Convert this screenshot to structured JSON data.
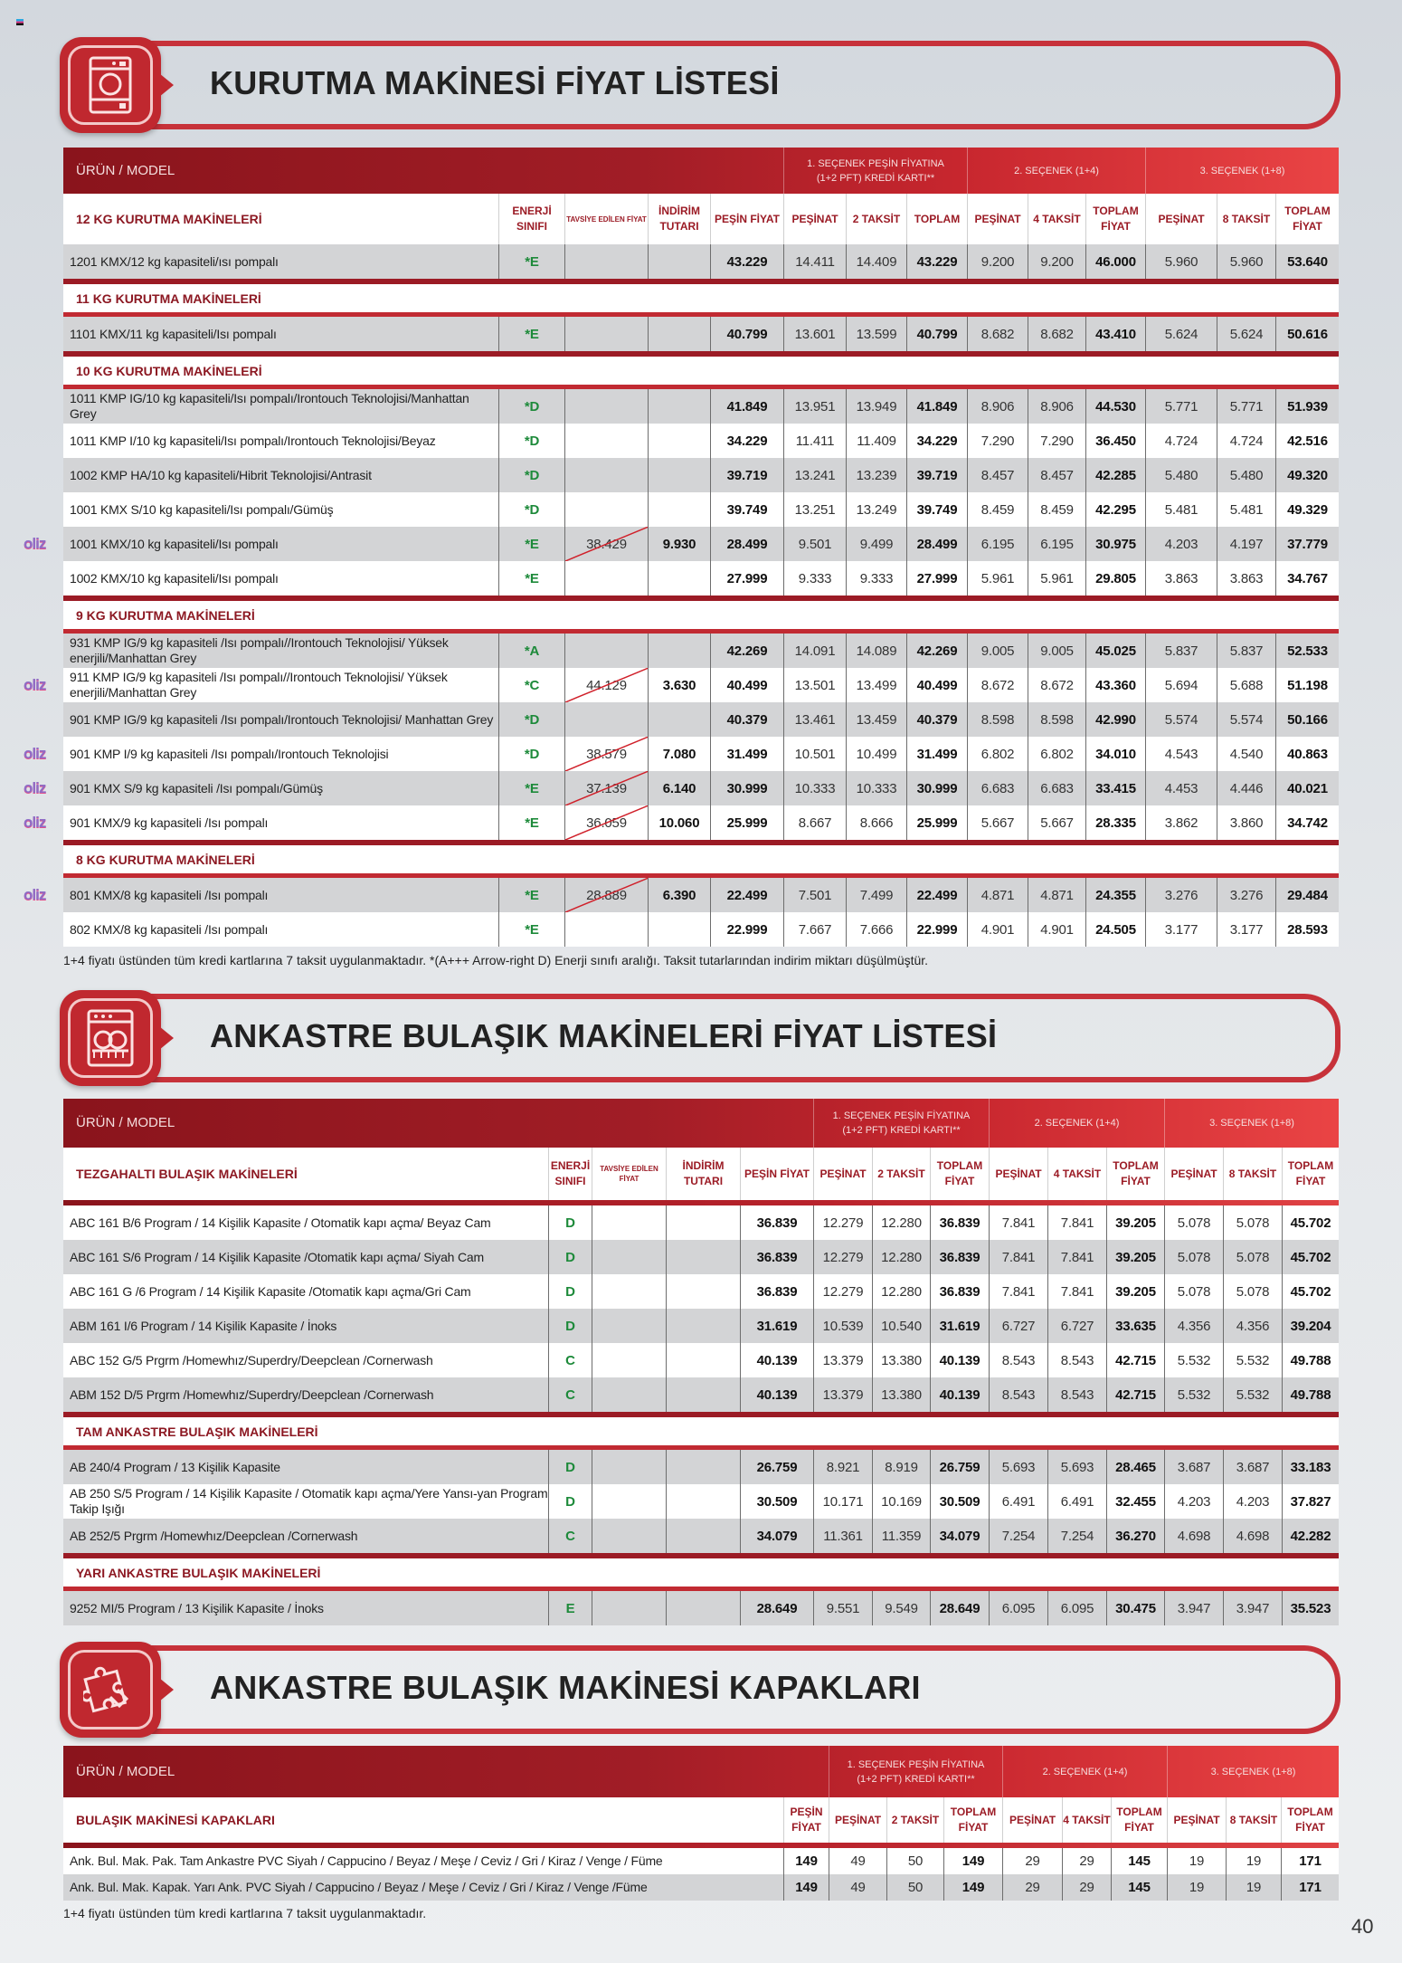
{
  "page_number": "40",
  "logo_text": "oliz",
  "header_groups": {
    "product_label": "ÜRÜN / MODEL",
    "g1_line1": "1. SEÇENEK PEŞİN FİYATINA",
    "g1_line2": "(1+2 PFT) KREDİ KARTI**",
    "g2": "2. SEÇENEK (1+4)",
    "g3": "3. SEÇENEK (1+8)"
  },
  "tables": [
    {
      "banner_title": "KURUTMA MAKİNESİ FİYAT LİSTESİ",
      "icon": "dryer-icon",
      "columns": [
        "ENERJİ SINIFI",
        "TAVSİYE EDİLEN FİYAT",
        "İNDİRİM TUTARI",
        "PEŞİN FİYAT",
        "PEŞİNAT",
        "2 TAKSİT",
        "TOPLAM",
        "PEŞİNAT",
        "4 TAKSİT",
        "TOPLAM FİYAT",
        "PEŞİNAT",
        "8 TAKSİT",
        "TOPLAM FİYAT"
      ],
      "footnote": "1+4 fiyatı üstünden tüm kredi kartlarına 7 taksit uygulanmaktadır. *(A+++ Arrow-right D) Enerji sınıfı aralığı. Taksit tutarlarından indirim miktarı düşülmüştür.",
      "sections": [
        {
          "title": "12 KG KURUTMA MAKİNELERİ",
          "rows": [
            {
              "name": "1201 KMX/12 kg kapasiteli/ısı pompalı",
              "energy": "*E",
              "tavsiye": "",
              "indirim": "",
              "vals": [
                "43.229",
                "14.411",
                "14.409",
                "43.229",
                "9.200",
                "9.200",
                "46.000",
                "5.960",
                "5.960",
                "53.640"
              ]
            }
          ]
        },
        {
          "title": "11 KG KURUTMA MAKİNELERİ",
          "rows": [
            {
              "name": "1101 KMX/11 kg kapasiteli/Isı pompalı",
              "energy": "*E",
              "tavsiye": "",
              "indirim": "",
              "vals": [
                "40.799",
                "13.601",
                "13.599",
                "40.799",
                "8.682",
                "8.682",
                "43.410",
                "5.624",
                "5.624",
                "50.616"
              ]
            }
          ]
        },
        {
          "title": "10 KG KURUTMA MAKİNELERİ",
          "rows": [
            {
              "name": "1011 KMP IG/10 kg kapasiteli/Isı pompalı/Irontouch Teknolojisi/Manhattan Grey",
              "energy": "*D",
              "tavsiye": "",
              "indirim": "",
              "vals": [
                "41.849",
                "13.951",
                "13.949",
                "41.849",
                "8.906",
                "8.906",
                "44.530",
                "5.771",
                "5.771",
                "51.939"
              ]
            },
            {
              "name": "1011 KMP I/10 kg kapasiteli/Isı pompalı/Irontouch Teknolojisi/Beyaz",
              "energy": "*D",
              "tavsiye": "",
              "indirim": "",
              "vals": [
                "34.229",
                "11.411",
                "11.409",
                "34.229",
                "7.290",
                "7.290",
                "36.450",
                "4.724",
                "4.724",
                "42.516"
              ]
            },
            {
              "name": "1002 KMP HA/10 kg kapasiteli/Hibrit Teknolojisi/Antrasit",
              "energy": "*D",
              "tavsiye": "",
              "indirim": "",
              "vals": [
                "39.719",
                "13.241",
                "13.239",
                "39.719",
                "8.457",
                "8.457",
                "42.285",
                "5.480",
                "5.480",
                "49.320"
              ]
            },
            {
              "name": "1001 KMX S/10 kg kapasiteli/Isı pompalı/Gümüş",
              "energy": "*D",
              "tavsiye": "",
              "indirim": "",
              "vals": [
                "39.749",
                "13.251",
                "13.249",
                "39.749",
                "8.459",
                "8.459",
                "42.295",
                "5.481",
                "5.481",
                "49.329"
              ]
            },
            {
              "name": "1001 KMX/10 kg kapasiteli/Isı pompalı",
              "energy": "*E",
              "tavsiye": "38.429",
              "indirim": "9.930",
              "oliz": true,
              "vals": [
                "28.499",
                "9.501",
                "9.499",
                "28.499",
                "6.195",
                "6.195",
                "30.975",
                "4.203",
                "4.197",
                "37.779"
              ]
            },
            {
              "name": "1002 KMX/10 kg kapasiteli/Isı pompalı",
              "energy": "*E",
              "tavsiye": "",
              "indirim": "",
              "vals": [
                "27.999",
                "9.333",
                "9.333",
                "27.999",
                "5.961",
                "5.961",
                "29.805",
                "3.863",
                "3.863",
                "34.767"
              ]
            }
          ]
        },
        {
          "title": "9 KG KURUTMA MAKİNELERİ",
          "rows": [
            {
              "name": "931 KMP IG/9 kg kapasiteli /Isı pompalı//Irontouch Teknolojisi/ Yüksek enerjili/Manhattan Grey",
              "energy": "*A",
              "tavsiye": "",
              "indirim": "",
              "vals": [
                "42.269",
                "14.091",
                "14.089",
                "42.269",
                "9.005",
                "9.005",
                "45.025",
                "5.837",
                "5.837",
                "52.533"
              ]
            },
            {
              "name": "911 KMP IG/9 kg kapasiteli /Isı pompalı//Irontouch Teknolojisi/ Yüksek enerjili/Manhattan Grey",
              "energy": "*C",
              "tavsiye": "44.129",
              "indirim": "3.630",
              "oliz": true,
              "vals": [
                "40.499",
                "13.501",
                "13.499",
                "40.499",
                "8.672",
                "8.672",
                "43.360",
                "5.694",
                "5.688",
                "51.198"
              ]
            },
            {
              "name": "901 KMP IG/9 kg kapasiteli /Isı pompalı/Irontouch Teknolojisi/ Manhattan Grey",
              "energy": "*D",
              "tavsiye": "",
              "indirim": "",
              "vals": [
                "40.379",
                "13.461",
                "13.459",
                "40.379",
                "8.598",
                "8.598",
                "42.990",
                "5.574",
                "5.574",
                "50.166"
              ]
            },
            {
              "name": "901 KMP I/9 kg kapasiteli /Isı pompalı/Irontouch Teknolojisi",
              "energy": "*D",
              "tavsiye": "38.579",
              "indirim": "7.080",
              "oliz": true,
              "vals": [
                "31.499",
                "10.501",
                "10.499",
                "31.499",
                "6.802",
                "6.802",
                "34.010",
                "4.543",
                "4.540",
                "40.863"
              ]
            },
            {
              "name": "901 KMX S/9 kg kapasiteli /Isı pompalı/Gümüş",
              "energy": "*E",
              "tavsiye": "37.139",
              "indirim": "6.140",
              "oliz": true,
              "vals": [
                "30.999",
                "10.333",
                "10.333",
                "30.999",
                "6.683",
                "6.683",
                "33.415",
                "4.453",
                "4.446",
                "40.021"
              ]
            },
            {
              "name": "901 KMX/9 kg kapasiteli /Isı pompalı",
              "energy": "*E",
              "tavsiye": "36.059",
              "indirim": "10.060",
              "oliz": true,
              "vals": [
                "25.999",
                "8.667",
                "8.666",
                "25.999",
                "5.667",
                "5.667",
                "28.335",
                "3.862",
                "3.860",
                "34.742"
              ]
            }
          ]
        },
        {
          "title": "8 KG KURUTMA MAKİNELERİ",
          "rows": [
            {
              "name": "801 KMX/8 kg kapasiteli /Isı pompalı",
              "energy": "*E",
              "tavsiye": "28.889",
              "indirim": "6.390",
              "oliz": true,
              "vals": [
                "22.499",
                "7.501",
                "7.499",
                "22.499",
                "4.871",
                "4.871",
                "24.355",
                "3.276",
                "3.276",
                "29.484"
              ]
            },
            {
              "name": "802 KMX/8 kg kapasiteli /Isı pompalı",
              "energy": "*E",
              "tavsiye": "",
              "indirim": "",
              "vals": [
                "22.999",
                "7.667",
                "7.666",
                "22.999",
                "4.901",
                "4.901",
                "24.505",
                "3.177",
                "3.177",
                "28.593"
              ]
            }
          ]
        }
      ]
    },
    {
      "banner_title": "ANKASTRE BULAŞIK MAKİNELERİ FİYAT LİSTESİ",
      "icon": "dishwasher-icon",
      "columns": [
        "ENERJİ SINIFI",
        "TAVSİYE EDİLEN FİYAT",
        "İNDİRİM TUTARI",
        "PEŞİN FİYAT",
        "PEŞİNAT",
        "2 TAKSİT",
        "TOPLAM FİYAT",
        "PEŞİNAT",
        "4 TAKSİT",
        "TOPLAM FİYAT",
        "PEŞİNAT",
        "8 TAKSİT",
        "TOPLAM FİYAT"
      ],
      "sections": [
        {
          "title": "TEZGAHALTI BULAŞIK MAKİNELERİ",
          "rows": [
            {
              "name": "ABC 161 B/6 Program / 14 Kişilik Kapasite / Otomatik kapı açma/ Beyaz Cam",
              "energy": "D",
              "tavsiye": "",
              "indirim": "",
              "vals": [
                "36.839",
                "12.279",
                "12.280",
                "36.839",
                "7.841",
                "7.841",
                "39.205",
                "5.078",
                "5.078",
                "45.702"
              ]
            },
            {
              "name": "ABC 161 S/6 Program / 14 Kişilik Kapasite /Otomatik kapı açma/ Siyah Cam",
              "energy": "D",
              "tavsiye": "",
              "indirim": "",
              "vals": [
                "36.839",
                "12.279",
                "12.280",
                "36.839",
                "7.841",
                "7.841",
                "39.205",
                "5.078",
                "5.078",
                "45.702"
              ]
            },
            {
              "name": "ABC 161 G /6 Program / 14 Kişilik Kapasite /Otomatik kapı açma/Gri Cam",
              "energy": "D",
              "tavsiye": "",
              "indirim": "",
              "vals": [
                "36.839",
                "12.279",
                "12.280",
                "36.839",
                "7.841",
                "7.841",
                "39.205",
                "5.078",
                "5.078",
                "45.702"
              ]
            },
            {
              "name": "ABM 161 I/6 Program / 14 Kişilik Kapasite / İnoks",
              "energy": "D",
              "tavsiye": "",
              "indirim": "",
              "vals": [
                "31.619",
                "10.539",
                "10.540",
                "31.619",
                "6.727",
                "6.727",
                "33.635",
                "4.356",
                "4.356",
                "39.204"
              ]
            },
            {
              "name": "ABC 152 G/5 Prgrm /Homewhız/Superdry/Deepclean /Cornerwash",
              "energy": "C",
              "tavsiye": "",
              "indirim": "",
              "vals": [
                "40.139",
                "13.379",
                "13.380",
                "40.139",
                "8.543",
                "8.543",
                "42.715",
                "5.532",
                "5.532",
                "49.788"
              ]
            },
            {
              "name": "ABM 152 D/5 Prgrm /Homewhız/Superdry/Deepclean /Cornerwash",
              "energy": "C",
              "tavsiye": "",
              "indirim": "",
              "vals": [
                "40.139",
                "13.379",
                "13.380",
                "40.139",
                "8.543",
                "8.543",
                "42.715",
                "5.532",
                "5.532",
                "49.788"
              ]
            }
          ]
        },
        {
          "title": "TAM ANKASTRE BULAŞIK MAKİNELERİ",
          "rows": [
            {
              "name": "AB 240/4 Program / 13 Kişilik Kapasite",
              "energy": "D",
              "tavsiye": "",
              "indirim": "",
              "vals": [
                "26.759",
                "8.921",
                "8.919",
                "26.759",
                "5.693",
                "5.693",
                "28.465",
                "3.687",
                "3.687",
                "33.183"
              ]
            },
            {
              "name": "AB 250 S/5 Program / 14 Kişilik Kapasite / Otomatik kapı açma/Yere Yansı-yan Program Takip Işığı",
              "energy": "D",
              "tavsiye": "",
              "indirim": "",
              "vals": [
                "30.509",
                "10.171",
                "10.169",
                "30.509",
                "6.491",
                "6.491",
                "32.455",
                "4.203",
                "4.203",
                "37.827"
              ]
            },
            {
              "name": "AB 252/5 Prgrm /Homewhız/Deepclean /Cornerwash",
              "energy": "C",
              "tavsiye": "",
              "indirim": "",
              "vals": [
                "34.079",
                "11.361",
                "11.359",
                "34.079",
                "7.254",
                "7.254",
                "36.270",
                "4.698",
                "4.698",
                "42.282"
              ]
            }
          ]
        },
        {
          "title": "YARI ANKASTRE BULAŞIK MAKİNELERİ",
          "rows": [
            {
              "name": "9252 MI/5 Program / 13 Kişilik Kapasite / İnoks",
              "energy": "E",
              "tavsiye": "",
              "indirim": "",
              "vals": [
                "28.649",
                "9.551",
                "9.549",
                "28.649",
                "6.095",
                "6.095",
                "30.475",
                "3.947",
                "3.947",
                "35.523"
              ]
            }
          ]
        }
      ]
    },
    {
      "banner_title": "ANKASTRE BULAŞIK MAKİNESİ KAPAKLARI",
      "icon": "puzzle-icon",
      "columns": [
        "PEŞİN FİYAT",
        "PEŞİNAT",
        "2 TAKSİT",
        "TOPLAM FİYAT",
        "PEŞİNAT",
        "4 TAKSİT",
        "TOPLAM FİYAT",
        "PEŞİNAT",
        "8 TAKSİT",
        "TOPLAM FİYAT"
      ],
      "footnote": "1+4 fiyatı üstünden tüm kredi kartlarına 7 taksit uygulanmaktadır.",
      "sections": [
        {
          "title": "BULAŞIK MAKİNESİ KAPAKLARI",
          "rows": [
            {
              "name": "Ank. Bul. Mak. Pak. Tam Ankastre PVC Siyah / Cappucino / Beyaz / Meşe / Ceviz / Gri / Kiraz / Venge / Füme",
              "vals": [
                "149",
                "49",
                "50",
                "149",
                "29",
                "29",
                "145",
                "19",
                "19",
                "171"
              ]
            },
            {
              "name": "Ank. Bul. Mak. Kapak. Yarı Ank. PVC Siyah / Cappucino / Beyaz / Meşe / Ceviz / Gri / Kiraz / Venge /Füme",
              "vals": [
                "149",
                "49",
                "50",
                "149",
                "29",
                "29",
                "145",
                "19",
                "19",
                "171"
              ]
            }
          ]
        }
      ]
    }
  ]
}
